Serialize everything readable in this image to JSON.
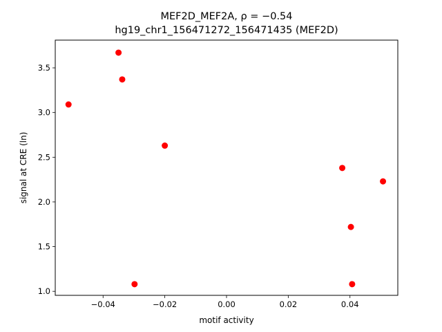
{
  "chart_data": {
    "type": "scatter",
    "title_line1": "MEF2D_MEF2A, ρ = −0.54",
    "title_line2": "hg19_chr1_156471272_156471435 (MEF2D)",
    "xlabel": "motif activity",
    "ylabel": "signal at CRE (ln)",
    "xlim": [
      -0.0555,
      0.0555
    ],
    "ylim": [
      0.955,
      3.81
    ],
    "xticks": [
      -0.04,
      -0.02,
      0.0,
      0.02,
      0.04
    ],
    "xtick_labels": [
      "−0.04",
      "−0.02",
      "0.00",
      "0.02",
      "0.04"
    ],
    "yticks": [
      1.0,
      1.5,
      2.0,
      2.5,
      3.0,
      3.5
    ],
    "ytick_labels": [
      "1.0",
      "1.5",
      "2.0",
      "2.5",
      "3.0",
      "3.5"
    ],
    "grid": false,
    "marker_color": "#ff0000",
    "points": [
      {
        "x": -0.0512,
        "y": 3.09
      },
      {
        "x": -0.035,
        "y": 3.67
      },
      {
        "x": -0.0338,
        "y": 3.37
      },
      {
        "x": -0.0298,
        "y": 1.08
      },
      {
        "x": -0.02,
        "y": 2.63
      },
      {
        "x": 0.0375,
        "y": 2.38
      },
      {
        "x": 0.0403,
        "y": 1.72
      },
      {
        "x": 0.0407,
        "y": 1.08
      },
      {
        "x": 0.0507,
        "y": 2.23
      }
    ]
  }
}
